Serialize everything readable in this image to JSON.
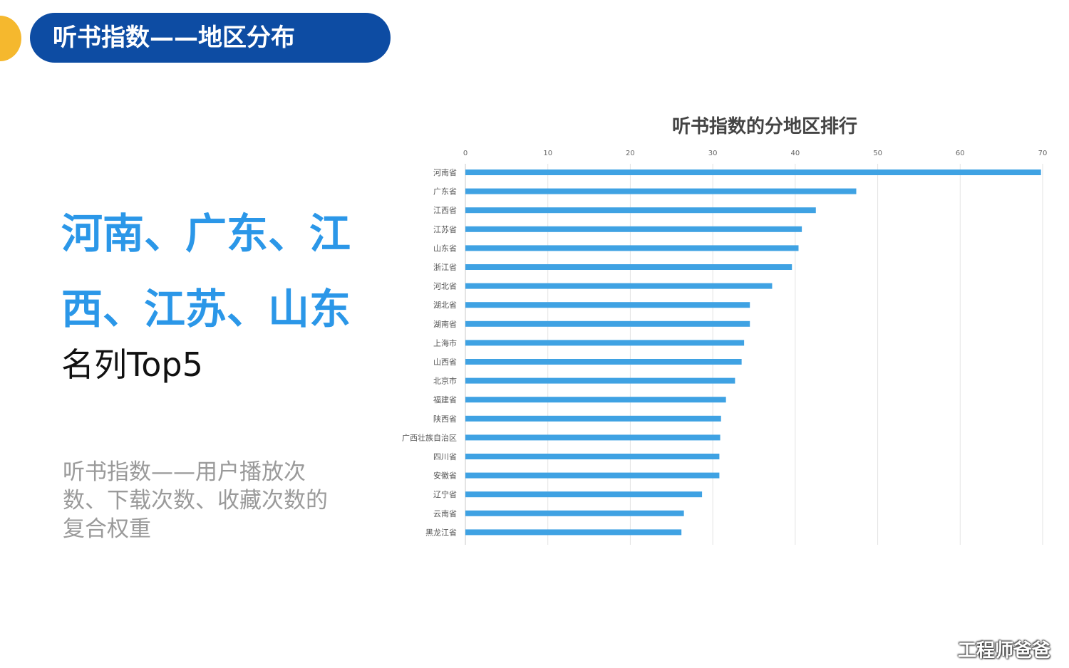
{
  "header": {
    "title": "听书指数——地区分布"
  },
  "headline": {
    "text": "河南、广东、江西、江苏、山东"
  },
  "subline": {
    "text": "名列Top5"
  },
  "note": {
    "text": "听书指数——用户播放次数、下载次数、收藏次数的复合权重"
  },
  "watermark": {
    "text": "工程师爸爸"
  },
  "colors": {
    "header_bg": "#0d4ca3",
    "accent_dot": "#f5b82e",
    "headline": "#2b97e8",
    "bar": "#3fa2e3"
  },
  "chart_data": {
    "type": "bar",
    "orientation": "horizontal",
    "title": "听书指数的分地区排行",
    "xlim": [
      0,
      70
    ],
    "xticks": [
      0,
      10,
      20,
      30,
      40,
      50,
      60,
      70
    ],
    "grid": true,
    "legend": "none",
    "categories": [
      "河南省",
      "广东省",
      "江西省",
      "江苏省",
      "山东省",
      "浙江省",
      "河北省",
      "湖北省",
      "湖南省",
      "上海市",
      "山西省",
      "北京市",
      "福建省",
      "陕西省",
      "广西壮族自治区",
      "四川省",
      "安徽省",
      "辽宁省",
      "云南省",
      "黑龙江省"
    ],
    "values": [
      69.8,
      47.4,
      42.5,
      40.8,
      40.4,
      39.6,
      37.2,
      34.5,
      34.5,
      33.8,
      33.5,
      32.7,
      31.6,
      31.0,
      30.9,
      30.8,
      30.8,
      28.7,
      26.5,
      26.2
    ]
  }
}
